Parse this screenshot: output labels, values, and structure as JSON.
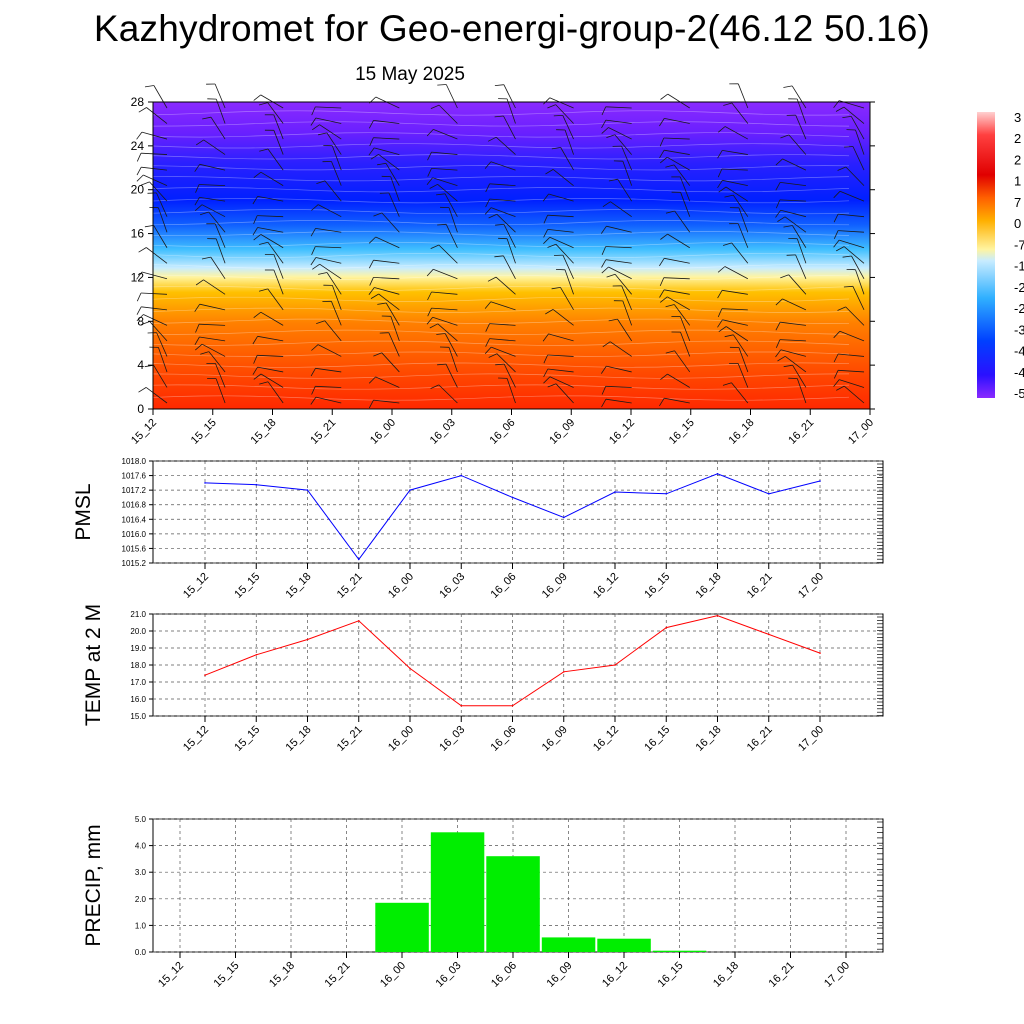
{
  "title": "Kazhydromet for Geo-energi-group-2(46.12 50.16)",
  "subtitle": "15 May 2025",
  "time_labels": [
    "15_12",
    "15_15",
    "15_18",
    "15_21",
    "16_00",
    "16_03",
    "16_06",
    "16_09",
    "16_12",
    "16_15",
    "16_18",
    "16_21",
    "17_00"
  ],
  "colors": {
    "pmsl": "#0000ff",
    "temp": "#ff0000",
    "precip": "#00ee00"
  },
  "chart_data": [
    {
      "type": "heatmap",
      "name": "vertical-profile",
      "y_ticks": [
        "0",
        "4",
        "8",
        "12",
        "16",
        "20",
        "24",
        "28"
      ],
      "ylim": [
        0,
        28
      ],
      "x": [
        "15_12",
        "15_15",
        "15_18",
        "15_21",
        "16_00",
        "16_03",
        "16_06",
        "16_09",
        "16_12",
        "16_15",
        "16_18",
        "16_21",
        "17_00"
      ],
      "colorbar_labels": [
        "3",
        "2",
        "2",
        "1",
        "7",
        "0",
        "-7",
        "-1",
        "-2",
        "-2",
        "-3",
        "-4",
        "-4",
        "-5"
      ],
      "note_visible": "temperature shading with wind barbs"
    },
    {
      "type": "line",
      "ylabel": "PMSL",
      "ylim": [
        1015.2,
        1018.0
      ],
      "y_ticks": [
        "1018.0",
        "1017.6",
        "1017.2",
        "1016.8",
        "1016.4",
        "1016.0",
        "1015.6",
        "1015.2"
      ],
      "x": [
        "15_12",
        "15_15",
        "15_18",
        "15_21",
        "16_00",
        "16_03",
        "16_06",
        "16_09",
        "16_12",
        "16_15",
        "16_18",
        "16_21",
        "17_00"
      ],
      "values": [
        1017.4,
        1017.35,
        1017.2,
        1015.3,
        1017.2,
        1017.6,
        1017.0,
        1016.45,
        1017.15,
        1017.1,
        1017.65,
        1017.1,
        1017.45
      ]
    },
    {
      "type": "line",
      "ylabel": "TEMP at 2 M",
      "ylim": [
        15.0,
        21.0
      ],
      "y_ticks": [
        "21.0",
        "20.0",
        "19.0",
        "18.0",
        "17.0",
        "16.0",
        "15.0"
      ],
      "x": [
        "15_12",
        "15_15",
        "15_18",
        "15_21",
        "16_00",
        "16_03",
        "16_06",
        "16_09",
        "16_12",
        "16_15",
        "16_18",
        "16_21",
        "17_00"
      ],
      "values": [
        17.4,
        18.6,
        19.5,
        20.6,
        17.8,
        15.6,
        15.6,
        17.6,
        18.0,
        20.2,
        20.9,
        19.8,
        18.7
      ]
    },
    {
      "type": "bar",
      "ylabel": "PRECIP, mm",
      "ylim": [
        0.0,
        5.0
      ],
      "y_ticks": [
        "5.0",
        "4.0",
        "3.0",
        "2.0",
        "1.0",
        "0.0"
      ],
      "categories": [
        "15_12",
        "15_15",
        "15_18",
        "15_21",
        "16_00",
        "16_03",
        "16_06",
        "16_09",
        "16_12",
        "16_15",
        "16_18",
        "16_21",
        "17_00"
      ],
      "values": [
        0,
        0,
        0,
        0,
        1.85,
        4.5,
        3.6,
        0.55,
        0.5,
        0.05,
        0,
        0,
        0
      ]
    }
  ]
}
